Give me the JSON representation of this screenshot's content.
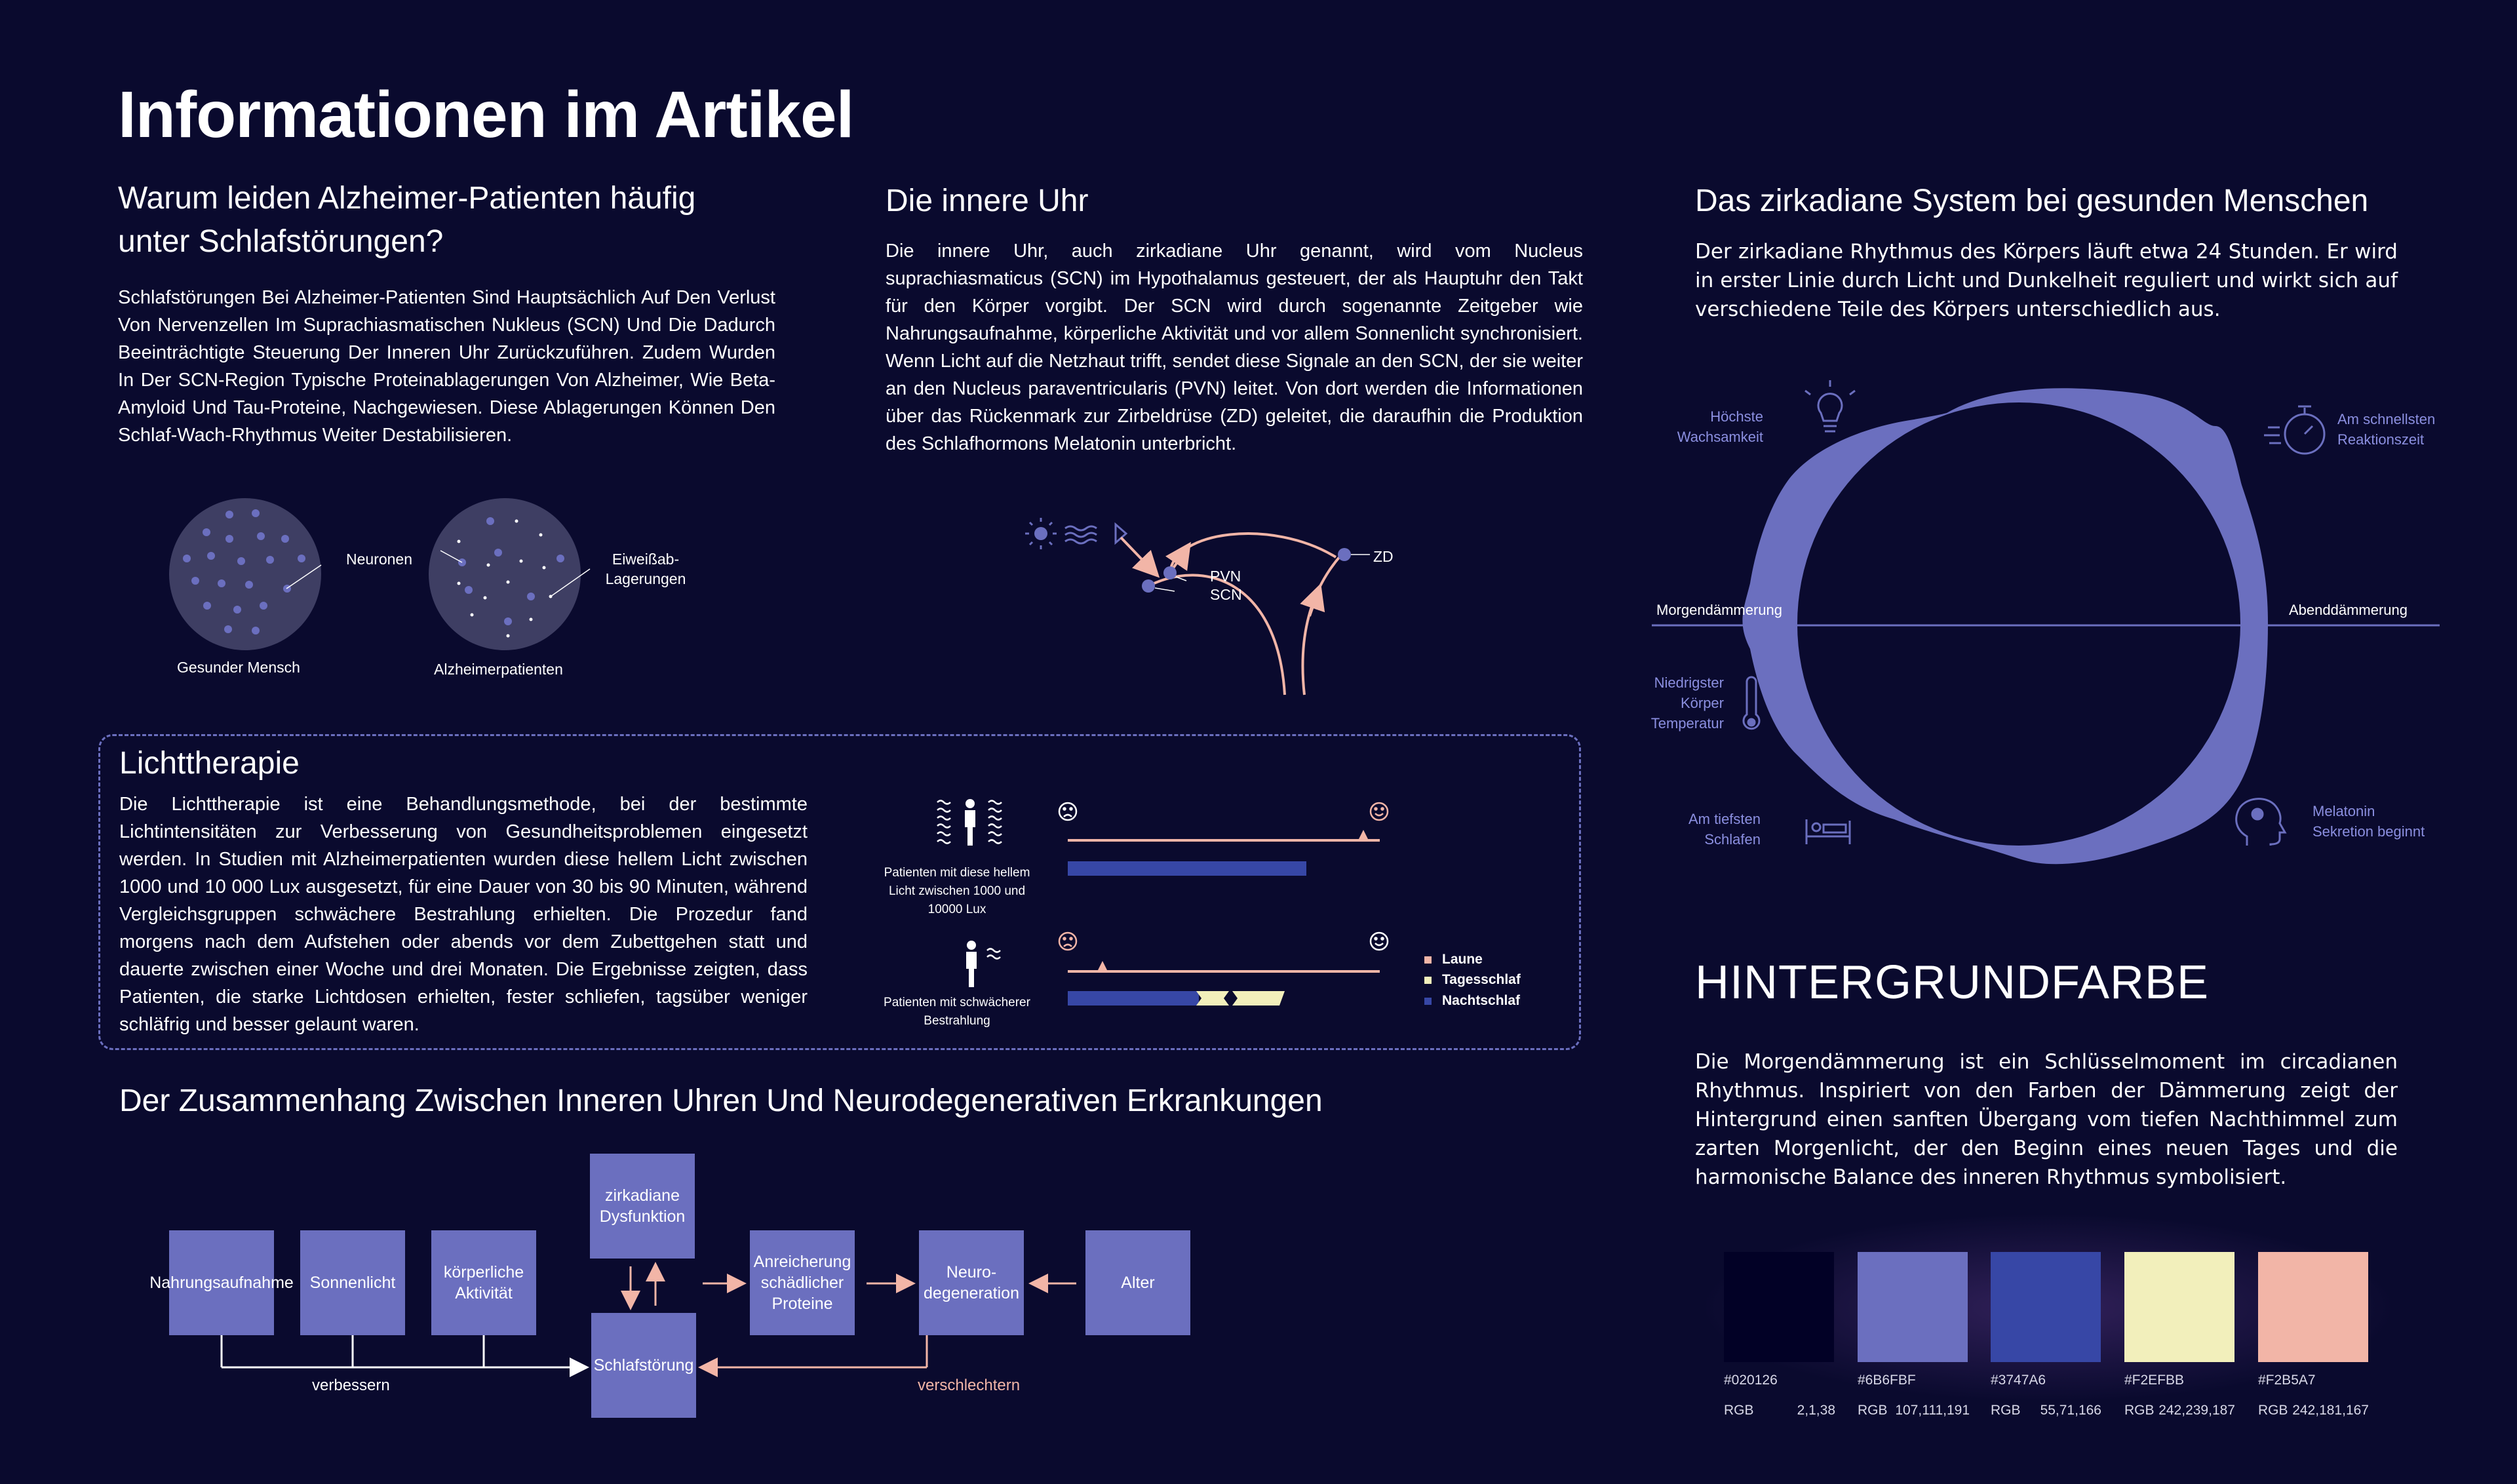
{
  "page": {
    "title": "Informationen im Artikel"
  },
  "alzheimer": {
    "heading": "Warum leiden Alzheimer-Patienten häufig unter Schlafstörungen?",
    "text": "Schlafstörungen Bei Alzheimer-Patienten Sind Hauptsächlich Auf Den Verlust Von Nervenzellen Im Suprachiasmatischen Nukleus (SCN) Und Die Dadurch Beeinträchtigte Steuerung Der Inneren Uhr Zurückzuführen. Zudem Wurden In Der SCN-Region Typische Proteinablagerungen Von Alzheimer, Wie Beta-Amyloid Und Tau-Proteine, Nachgewiesen. Diese Ablagerungen Können Den Schlaf-Wach-Rhythmus Weiter Destabilisieren.",
    "label_neurons": "Neuronen",
    "label_deposits_line1": "Eiweißab-",
    "label_deposits_line2": "Lagerungen",
    "caption_healthy": "Gesunder Mensch",
    "caption_patient": "Alzheimerpatienten"
  },
  "inner_clock": {
    "heading": "Die innere Uhr",
    "text": "Die innere Uhr, auch zirkadiane Uhr genannt, wird vom Nucleus suprachiasmaticus (SCN) im Hypothalamus gesteuert, der als Hauptuhr den Takt für den Körper vorgibt. Der SCN wird durch sogenannte Zeitgeber wie Nahrungsaufnahme, körperliche Aktivität und vor allem Sonnenlicht synchronisiert. Wenn Licht auf die Netzhaut trifft, sendet diese Signale an den SCN, der sie weiter an den Nucleus paraventricularis (PVN) leitet. Von dort werden die Informationen über das Rückenmark zur Zirbeldrüse (ZD) geleitet, die daraufhin die Produktion des Schlafhormons Melatonin unterbricht.",
    "label_pvn": "PVN",
    "label_scn": "SCN",
    "label_zd": "ZD"
  },
  "circadian": {
    "heading": "Das zirkadiane System bei gesunden Menschen",
    "text": "Der zirkadiane Rhythmus des Körpers läuft etwa 24 Stunden. Er wird in erster Linie durch Licht und Dunkelheit reguliert und wirkt sich auf verschiedene Teile des Körpers unterschiedlich aus.",
    "label_alertness_1": "Höchste",
    "label_alertness_2": "Wachsamkeit",
    "label_reaction_1": "Am schnellsten",
    "label_reaction_2": "Reaktionszeit",
    "label_dawn": "Morgendämmerung",
    "label_dusk": "Abenddämmerung",
    "label_temp_1": "Niedrigster",
    "label_temp_2": "Körper",
    "label_temp_3": "Temperatur",
    "label_sleep_1": "Am tiefsten",
    "label_sleep_2": "Schlafen",
    "label_melatonin_1": "Melatonin",
    "label_melatonin_2": "Sekretion beginnt"
  },
  "light_therapy": {
    "heading": "Lichttherapie",
    "text": "Die Lichttherapie ist eine Behandlungsmethode, bei der bestimmte Lichtintensitäten zur Verbesserung von Gesundheitsproblemen eingesetzt werden. In Studien mit Alzheimerpatienten wurden diese hellem Licht zwischen 1000 und 10 000 Lux ausgesetzt, für eine Dauer von 30 bis 90 Minuten, während Vergleichsgruppen schwächere Bestrahlung erhielten. Die Prozedur fand morgens nach dem Aufstehen oder abends vor dem Zubettgehen statt und dauerte zwischen einer Woche und drei Monaten. Die Ergebnisse zeigten, dass Patienten, die starke Lichtdosen erhielten, fester schliefen, tagsüber weniger schläfrig und besser gelaunt waren.",
    "group_bright_1": "Patienten mit diese hellem",
    "group_bright_2": "Licht zwischen 1000 und",
    "group_bright_3": "10000 Lux",
    "group_weak_1": "Patienten mit schwächerer",
    "group_weak_2": "Bestrahlung",
    "legend": [
      {
        "label": "Laune",
        "color": "#F2B5A7"
      },
      {
        "label": "Tagesschlaf",
        "color": "#F2EFBB"
      },
      {
        "label": "Nachtschlaf",
        "color": "#3747A6"
      }
    ]
  },
  "neuro": {
    "heading": "Der Zusammenhang Zwischen Inneren Uhren Und Neurodegenerativen Erkrankungen",
    "box_food": "Nahrungsaufnahme",
    "box_sun": "Sonnenlicht",
    "box_activity": "körperliche Aktivität",
    "box_dysfunction": "zirkadiane Dysfunktion",
    "box_sleep": "Schlafstörung",
    "box_protein": "Anreicherung schädlicher Proteine",
    "box_neuro": "Neuro-degeneration",
    "box_age": "Alter",
    "label_improve": "verbessern",
    "label_worsen": "verschlechtern"
  },
  "background": {
    "heading": "HINTERGRUNDFARBE",
    "text": "Die Morgendämmerung ist ein Schlüsselmoment im circadianen Rhythmus. Inspiriert von den Farben der Dämmerung zeigt der Hintergrund einen sanften Übergang vom tiefen Nachthimmel zum zarten Morgenlicht, der den Beginn eines neuen Tages und die harmonische Balance des inneren Rhythmus symbolisiert.",
    "swatches": [
      {
        "hex": "#020126",
        "rgb_label": "RGB",
        "rgb": "2,1,38"
      },
      {
        "hex": "#6B6FBF",
        "rgb_label": "RGB",
        "rgb": "107,111,191"
      },
      {
        "hex": "#3747A6",
        "rgb_label": "RGB",
        "rgb": "55,71,166"
      },
      {
        "hex": "#F2EFBB",
        "rgb_label": "RGB",
        "rgb": "242,239,187"
      },
      {
        "hex": "#F2B5A7",
        "rgb_label": "RGB",
        "rgb": "242,181,167"
      }
    ]
  }
}
